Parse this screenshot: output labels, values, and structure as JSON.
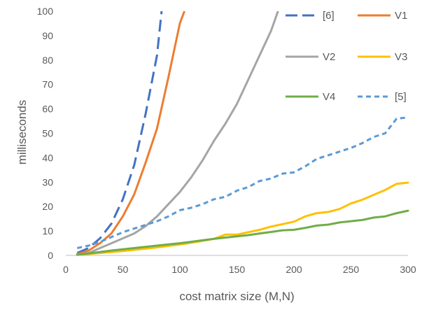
{
  "chart_data": {
    "type": "line",
    "title": "",
    "xlabel": "cost matrix size (M,N)",
    "ylabel": "milliseconds",
    "xlim": [
      0,
      300
    ],
    "ylim": [
      0,
      100
    ],
    "xticks": [
      0,
      50,
      100,
      150,
      200,
      250,
      300
    ],
    "yticks": [
      0,
      10,
      20,
      30,
      40,
      50,
      60,
      70,
      80,
      90,
      100
    ],
    "grid": false,
    "legend_position": "top-right",
    "series": [
      {
        "name": "[6]",
        "color": "#4472c4",
        "dash": "long-dash",
        "x": [
          10,
          20,
          30,
          40,
          50,
          60,
          70,
          80,
          84
        ],
        "y": [
          1,
          3,
          7,
          13,
          23,
          37,
          58,
          82,
          100
        ]
      },
      {
        "name": "V1",
        "color": "#ed7d31",
        "dash": "solid",
        "x": [
          10,
          20,
          30,
          40,
          50,
          60,
          70,
          80,
          90,
          100,
          104
        ],
        "y": [
          0.5,
          2,
          5,
          9,
          16,
          25,
          38,
          52,
          73,
          95,
          100
        ]
      },
      {
        "name": "V2",
        "color": "#a5a5a5",
        "dash": "solid",
        "x": [
          10,
          20,
          30,
          40,
          50,
          60,
          70,
          80,
          90,
          100,
          110,
          120,
          130,
          140,
          150,
          160,
          170,
          180,
          186
        ],
        "y": [
          0.3,
          1,
          3,
          5,
          7,
          9,
          12,
          16,
          21,
          26,
          32,
          39,
          47,
          54,
          62,
          72,
          82,
          92,
          100
        ]
      },
      {
        "name": "V3",
        "color": "#ffc000",
        "dash": "solid",
        "x": [
          10,
          20,
          30,
          40,
          50,
          60,
          70,
          80,
          90,
          100,
          110,
          120,
          130,
          140,
          150,
          160,
          170,
          180,
          190,
          200,
          210,
          220,
          230,
          240,
          250,
          260,
          270,
          280,
          290,
          300
        ],
        "y": [
          0.2,
          0.6,
          1,
          1.4,
          1.8,
          2.3,
          2.8,
          3.3,
          3.9,
          4.5,
          5.2,
          6,
          6.8,
          8.5,
          8.5,
          9.5,
          10.5,
          11.8,
          12.8,
          13.8,
          16,
          17.3,
          17.8,
          19,
          21.3,
          22.8,
          24.8,
          26.8,
          29.3,
          29.8
        ]
      },
      {
        "name": "V4",
        "color": "#70ad47",
        "dash": "solid",
        "x": [
          10,
          20,
          30,
          40,
          50,
          60,
          70,
          80,
          90,
          100,
          110,
          120,
          130,
          140,
          150,
          160,
          170,
          180,
          190,
          200,
          210,
          220,
          230,
          240,
          250,
          260,
          270,
          280,
          290,
          300
        ],
        "y": [
          0.3,
          0.8,
          1.4,
          2,
          2.5,
          3,
          3.5,
          4,
          4.5,
          5,
          5.6,
          6.2,
          6.8,
          7.3,
          7.8,
          8.3,
          9,
          9.6,
          10.3,
          10.5,
          11.3,
          12.2,
          12.6,
          13.5,
          14,
          14.5,
          15.5,
          16,
          17.3,
          18.3
        ]
      },
      {
        "name": "[5]",
        "color": "#5b9bd5",
        "dash": "short-dash",
        "x": [
          10,
          20,
          30,
          40,
          50,
          60,
          70,
          80,
          90,
          100,
          110,
          120,
          130,
          140,
          150,
          160,
          170,
          180,
          190,
          200,
          210,
          220,
          230,
          240,
          250,
          260,
          270,
          280,
          290,
          300
        ],
        "y": [
          3,
          4,
          5.5,
          7.5,
          9.5,
          11,
          12.5,
          14,
          16,
          18.5,
          19.5,
          21,
          23,
          24,
          26.5,
          28,
          30.5,
          31.5,
          33.5,
          34,
          36.5,
          39.5,
          41,
          42.5,
          44,
          46,
          48.5,
          50,
          56,
          56.5
        ]
      }
    ]
  }
}
